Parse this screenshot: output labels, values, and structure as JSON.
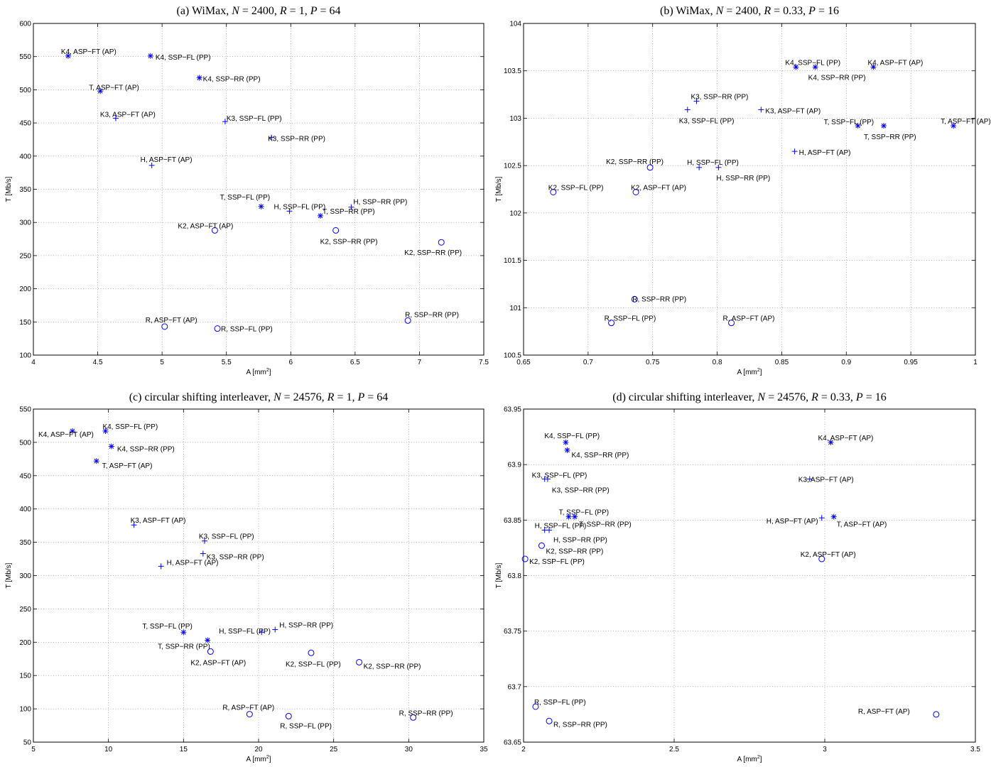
{
  "marker_color": "#0000ff",
  "chart_data": [
    {
      "type": "scatter",
      "title": "(a) WiMax, N = 2400, R = 1, P = 64",
      "xlabel": "A [mm²]",
      "ylabel": "T [Mb/s]",
      "xlim": [
        4,
        7.5
      ],
      "ylim": [
        100,
        600
      ],
      "xticks": [
        "4",
        "4.5",
        "5",
        "5.5",
        "6",
        "6.5",
        "7",
        "7.5"
      ],
      "yticks": [
        "100",
        "150",
        "200",
        "250",
        "300",
        "350",
        "400",
        "450",
        "500",
        "550",
        "600"
      ],
      "grid": true,
      "points": [
        {
          "label": "K4, ASP−FT (AP)",
          "x": 4.27,
          "y": 551,
          "marker": "star"
        },
        {
          "label": "K4, SSP−FL (PP)",
          "x": 4.91,
          "y": 551,
          "marker": "star"
        },
        {
          "label": "K4, SSP−RR (PP)",
          "x": 5.29,
          "y": 518,
          "marker": "star"
        },
        {
          "label": "T, ASP−FT (AP)",
          "x": 4.52,
          "y": 498,
          "marker": "star"
        },
        {
          "label": "K3, ASP−FT (AP)",
          "x": 4.64,
          "y": 457,
          "marker": "plus"
        },
        {
          "label": "K3, SSP−FL (PP)",
          "x": 5.49,
          "y": 452,
          "marker": "plus"
        },
        {
          "label": "K3, SSP−RR (PP)",
          "x": 5.85,
          "y": 428,
          "marker": "plus"
        },
        {
          "label": "H, ASP−FT (AP)",
          "x": 4.92,
          "y": 386,
          "marker": "plus"
        },
        {
          "label": "T, SSP−FL (PP)",
          "x": 5.77,
          "y": 324,
          "marker": "star"
        },
        {
          "label": "H, SSP−FL (PP)",
          "x": 5.99,
          "y": 317,
          "marker": "plus"
        },
        {
          "label": "H, SSP−RR (PP)",
          "x": 6.47,
          "y": 323,
          "marker": "plus"
        },
        {
          "label": "T, SSP−RR (PP)",
          "x": 6.23,
          "y": 310,
          "marker": "star"
        },
        {
          "label": "K2, ASP−FT (AP)",
          "x": 5.41,
          "y": 288,
          "marker": "circle"
        },
        {
          "label": "K2, SSP−RR (PP)",
          "x": 6.35,
          "y": 288,
          "marker": "circle"
        },
        {
          "label": "K2, SSP−RR (PP)",
          "x": 7.17,
          "y": 270,
          "marker": "circle"
        },
        {
          "label": "R, ASP−FT (AP)",
          "x": 5.02,
          "y": 143,
          "marker": "circle"
        },
        {
          "label": "R, SSP−FL (PP)",
          "x": 5.43,
          "y": 140,
          "marker": "circle"
        },
        {
          "label": "R, SSP−RR (PP)",
          "x": 6.91,
          "y": 152,
          "marker": "circle"
        }
      ]
    },
    {
      "type": "scatter",
      "title": "(b) WiMax, N = 2400, R = 0.33, P = 16",
      "xlabel": "A [mm²]",
      "ylabel": "T [Mb/s]",
      "xlim": [
        0.65,
        1
      ],
      "ylim": [
        100.5,
        104
      ],
      "xticks": [
        "0.65",
        "0.7",
        "0.75",
        "0.8",
        "0.85",
        "0.9",
        "0.95",
        "1"
      ],
      "yticks": [
        "100.5",
        "101",
        "101.5",
        "102",
        "102.5",
        "103",
        "103.5",
        "104"
      ],
      "grid": true,
      "points": [
        {
          "label": "K4, SSP−FL (PP)",
          "x": 0.861,
          "y": 103.54,
          "marker": "star"
        },
        {
          "label": "K4, ASP−FT (AP)",
          "x": 0.921,
          "y": 103.54,
          "marker": "star"
        },
        {
          "label": "K4, SSP−RR (PP)",
          "x": 0.876,
          "y": 103.54,
          "marker": "star"
        },
        {
          "label": "K3, SSP−RR (PP)",
          "x": 0.784,
          "y": 103.18,
          "marker": "plus"
        },
        {
          "label": "K3, SSP−FL (PP)",
          "x": 0.777,
          "y": 103.09,
          "marker": "plus"
        },
        {
          "label": "K3, ASP−FT (AP)",
          "x": 0.834,
          "y": 103.09,
          "marker": "plus"
        },
        {
          "label": "T, SSP−FL (PP)",
          "x": 0.909,
          "y": 102.92,
          "marker": "star"
        },
        {
          "label": "T, ASP−FT (AP)",
          "x": 0.983,
          "y": 102.92,
          "marker": "star"
        },
        {
          "label": "T, SSP−RR (PP)",
          "x": 0.929,
          "y": 102.92,
          "marker": "star"
        },
        {
          "label": "H, ASP−FT (AP)",
          "x": 0.86,
          "y": 102.65,
          "marker": "plus"
        },
        {
          "label": "K2, SSP−RR (PP)",
          "x": 0.748,
          "y": 102.48,
          "marker": "circle"
        },
        {
          "label": "H, SSP−FL (PP)",
          "x": 0.786,
          "y": 102.48,
          "marker": "plus"
        },
        {
          "label": "H, SSP−RR (PP)",
          "x": 0.801,
          "y": 102.48,
          "marker": "plus"
        },
        {
          "label": "K2, SSP−FL (PP)",
          "x": 0.673,
          "y": 102.22,
          "marker": "circle"
        },
        {
          "label": "K2, ASP−FT (AP)",
          "x": 0.737,
          "y": 102.22,
          "marker": "circle"
        },
        {
          "label": "R, SSP−RR (PP)",
          "x": 0.736,
          "y": 101.09,
          "marker": "circle"
        },
        {
          "label": "R, SSP−FL (PP)",
          "x": 0.718,
          "y": 100.84,
          "marker": "circle"
        },
        {
          "label": "R, ASP−FT (AP)",
          "x": 0.811,
          "y": 100.84,
          "marker": "circle"
        }
      ]
    },
    {
      "type": "scatter",
      "title": "(c) circular shifting interleaver, N = 24576, R = 1, P = 64",
      "xlabel": "A [mm²]",
      "ylabel": "T [Mb/s]",
      "xlim": [
        5,
        35
      ],
      "ylim": [
        50,
        550
      ],
      "xticks": [
        "5",
        "10",
        "15",
        "20",
        "25",
        "30",
        "35"
      ],
      "yticks": [
        "50",
        "100",
        "150",
        "200",
        "250",
        "300",
        "350",
        "400",
        "450",
        "500",
        "550"
      ],
      "grid": true,
      "points": [
        {
          "label": "K4, ASP−FT (AP)",
          "x": 7.6,
          "y": 517,
          "marker": "star"
        },
        {
          "label": "K4, SSP−FL (PP)",
          "x": 9.8,
          "y": 517,
          "marker": "star"
        },
        {
          "label": "K4, SSP−RR (PP)",
          "x": 10.2,
          "y": 494,
          "marker": "star"
        },
        {
          "label": "T, ASP−FT (AP)",
          "x": 9.2,
          "y": 472,
          "marker": "star"
        },
        {
          "label": "K3, ASP−FT (AP)",
          "x": 11.7,
          "y": 376,
          "marker": "plus"
        },
        {
          "label": "K3, SSP−FL (PP)",
          "x": 16.4,
          "y": 352,
          "marker": "plus"
        },
        {
          "label": "K3, SSP−RR (PP)",
          "x": 16.3,
          "y": 333,
          "marker": "plus"
        },
        {
          "label": "H, ASP−FT (AP)",
          "x": 13.5,
          "y": 314,
          "marker": "plus"
        },
        {
          "label": "T, SSP−FL (PP)",
          "x": 15.0,
          "y": 215,
          "marker": "star"
        },
        {
          "label": "H, SSP−FL (PP)",
          "x": 20.2,
          "y": 215,
          "marker": "plus"
        },
        {
          "label": "H, SSP−RR (PP)",
          "x": 21.1,
          "y": 219,
          "marker": "plus"
        },
        {
          "label": "T, SSP−RR (PP)",
          "x": 16.6,
          "y": 203,
          "marker": "star"
        },
        {
          "label": "K2, ASP−FT (AP)",
          "x": 16.8,
          "y": 186,
          "marker": "circle"
        },
        {
          "label": "K2, SSP−FL (PP)",
          "x": 23.5,
          "y": 184,
          "marker": "circle"
        },
        {
          "label": "K2, SSP−RR (PP)",
          "x": 26.7,
          "y": 170,
          "marker": "circle"
        },
        {
          "label": "R, ASP−FT (AP)",
          "x": 19.4,
          "y": 92,
          "marker": "circle"
        },
        {
          "label": "R, SSP−FL (PP)",
          "x": 22.0,
          "y": 89,
          "marker": "circle"
        },
        {
          "label": "R, SSP−RR (PP)",
          "x": 30.3,
          "y": 87,
          "marker": "circle"
        }
      ]
    },
    {
      "type": "scatter",
      "title": "(d) circular shifting interleaver, N = 24576, R = 0.33, P = 16",
      "xlabel": "A [mm²]",
      "ylabel": "T [Mb/s]",
      "xlim": [
        2,
        3.5
      ],
      "ylim": [
        63.65,
        63.95
      ],
      "xticks": [
        "2",
        "2.5",
        "3",
        "3.5"
      ],
      "yticks": [
        "63.65",
        "63.7",
        "63.75",
        "63.8",
        "63.85",
        "63.9",
        "63.95"
      ],
      "grid": true,
      "points": [
        {
          "label": "K4, SSP−FL (PP)",
          "x": 2.14,
          "y": 63.92,
          "marker": "star"
        },
        {
          "label": "K4, SSP−RR (PP)",
          "x": 2.145,
          "y": 63.913,
          "marker": "star"
        },
        {
          "label": "K4, ASP−FT (AP)",
          "x": 3.02,
          "y": 63.92,
          "marker": "star"
        },
        {
          "label": "K3, SSP−FL (PP)",
          "x": 2.07,
          "y": 63.887,
          "marker": "plus"
        },
        {
          "label": "K3, SSP−RR (PP)",
          "x": 2.08,
          "y": 63.887,
          "marker": "plus"
        },
        {
          "label": "K3, ASP−FT (AP)",
          "x": 2.95,
          "y": 63.887,
          "marker": "plus"
        },
        {
          "label": "T, SSP−FL (PP)",
          "x": 2.15,
          "y": 63.853,
          "marker": "star"
        },
        {
          "label": "T, SSP−RR (PP)",
          "x": 2.17,
          "y": 63.853,
          "marker": "star"
        },
        {
          "label": "H, ASP−FT (AP)",
          "x": 2.99,
          "y": 63.852,
          "marker": "plus"
        },
        {
          "label": "T, ASP−FT (AP)",
          "x": 3.03,
          "y": 63.853,
          "marker": "star"
        },
        {
          "label": "H, SSP−FL (PP)",
          "x": 2.07,
          "y": 63.841,
          "marker": "plus"
        },
        {
          "label": "H, SSP−RR (PP)",
          "x": 2.085,
          "y": 63.841,
          "marker": "plus"
        },
        {
          "label": "K2, SSP−RR (PP)",
          "x": 2.06,
          "y": 63.827,
          "marker": "circle"
        },
        {
          "label": "K2, SSP−FL (PP)",
          "x": 2.005,
          "y": 63.815,
          "marker": "circle"
        },
        {
          "label": "K2, ASP−FT (AP)",
          "x": 2.99,
          "y": 63.815,
          "marker": "circle"
        },
        {
          "label": "R, SSP−FL (PP)",
          "x": 2.04,
          "y": 63.682,
          "marker": "circle"
        },
        {
          "label": "R, SSP−RR (PP)",
          "x": 2.085,
          "y": 63.669,
          "marker": "circle"
        },
        {
          "label": "R, ASP−FT (AP)",
          "x": 3.37,
          "y": 63.675,
          "marker": "circle"
        }
      ]
    }
  ]
}
